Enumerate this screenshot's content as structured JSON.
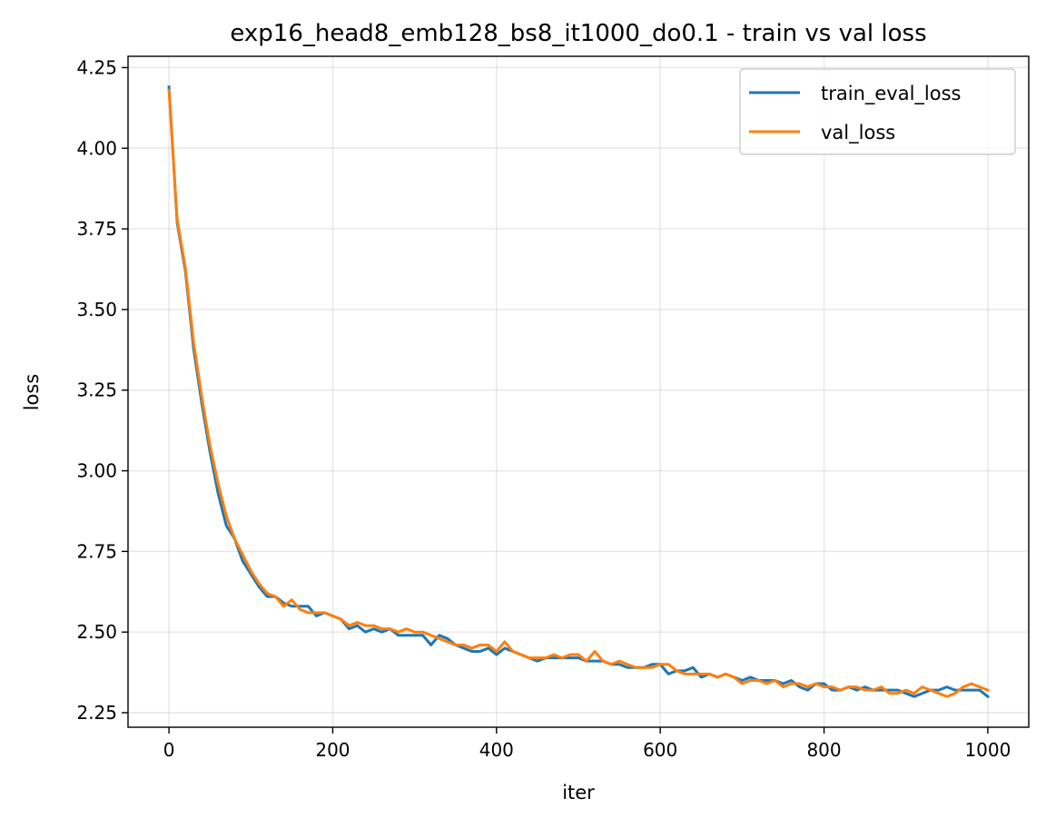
{
  "chart_data": {
    "type": "line",
    "title": "exp16_head8_emb128_bs8_it1000_do0.1 - train vs val loss",
    "xlabel": "iter",
    "ylabel": "loss",
    "xlim": [
      -50,
      1050
    ],
    "ylim": [
      2.205,
      4.285
    ],
    "xticks": [
      0,
      200,
      400,
      600,
      800,
      1000
    ],
    "yticks": [
      2.25,
      2.5,
      2.75,
      3.0,
      3.25,
      3.5,
      3.75,
      4.0,
      4.25
    ],
    "xtick_labels": [
      "0",
      "200",
      "400",
      "600",
      "800",
      "1000"
    ],
    "ytick_labels": [
      "2.25",
      "2.50",
      "2.75",
      "3.00",
      "3.25",
      "3.50",
      "3.75",
      "4.00",
      "4.25"
    ],
    "grid": true,
    "legend_position": "top-right",
    "x": [
      0,
      10,
      20,
      30,
      40,
      50,
      60,
      70,
      80,
      90,
      100,
      110,
      120,
      130,
      140,
      150,
      160,
      170,
      180,
      190,
      200,
      210,
      220,
      230,
      240,
      250,
      260,
      270,
      280,
      290,
      300,
      310,
      320,
      330,
      340,
      350,
      360,
      370,
      380,
      390,
      400,
      410,
      420,
      430,
      440,
      450,
      460,
      470,
      480,
      490,
      500,
      510,
      520,
      530,
      540,
      550,
      560,
      570,
      580,
      590,
      600,
      610,
      620,
      630,
      640,
      650,
      660,
      670,
      680,
      690,
      700,
      710,
      720,
      730,
      740,
      750,
      760,
      770,
      780,
      790,
      800,
      810,
      820,
      830,
      840,
      850,
      860,
      870,
      880,
      890,
      900,
      910,
      920,
      930,
      940,
      950,
      960,
      970,
      980,
      990,
      1000
    ],
    "series": [
      {
        "name": "train_eval_loss",
        "color": "#1f77b4",
        "values": [
          4.19,
          3.77,
          3.62,
          3.38,
          3.21,
          3.06,
          2.93,
          2.83,
          2.79,
          2.72,
          2.68,
          2.64,
          2.61,
          2.61,
          2.59,
          2.58,
          2.58,
          2.58,
          2.55,
          2.56,
          2.55,
          2.54,
          2.51,
          2.52,
          2.5,
          2.51,
          2.5,
          2.51,
          2.49,
          2.49,
          2.49,
          2.49,
          2.46,
          2.49,
          2.48,
          2.46,
          2.45,
          2.44,
          2.44,
          2.45,
          2.43,
          2.45,
          2.44,
          2.43,
          2.42,
          2.41,
          2.42,
          2.42,
          2.42,
          2.42,
          2.42,
          2.41,
          2.41,
          2.41,
          2.4,
          2.4,
          2.39,
          2.39,
          2.39,
          2.4,
          2.4,
          2.37,
          2.38,
          2.38,
          2.39,
          2.36,
          2.37,
          2.36,
          2.37,
          2.36,
          2.35,
          2.36,
          2.35,
          2.35,
          2.35,
          2.34,
          2.35,
          2.33,
          2.32,
          2.34,
          2.34,
          2.32,
          2.32,
          2.33,
          2.32,
          2.33,
          2.32,
          2.32,
          2.32,
          2.32,
          2.31,
          2.3,
          2.31,
          2.32,
          2.32,
          2.33,
          2.32,
          2.32,
          2.32,
          2.32,
          2.3
        ]
      },
      {
        "name": "val_loss",
        "color": "#ff7f0e",
        "values": [
          4.18,
          3.78,
          3.63,
          3.4,
          3.23,
          3.08,
          2.96,
          2.86,
          2.79,
          2.74,
          2.69,
          2.65,
          2.62,
          2.61,
          2.58,
          2.6,
          2.57,
          2.56,
          2.56,
          2.56,
          2.55,
          2.54,
          2.52,
          2.53,
          2.52,
          2.52,
          2.51,
          2.51,
          2.5,
          2.51,
          2.5,
          2.5,
          2.49,
          2.48,
          2.47,
          2.46,
          2.46,
          2.45,
          2.46,
          2.46,
          2.44,
          2.47,
          2.44,
          2.43,
          2.42,
          2.42,
          2.42,
          2.43,
          2.42,
          2.43,
          2.43,
          2.41,
          2.44,
          2.41,
          2.4,
          2.41,
          2.4,
          2.39,
          2.39,
          2.39,
          2.4,
          2.4,
          2.38,
          2.37,
          2.37,
          2.37,
          2.37,
          2.36,
          2.37,
          2.36,
          2.34,
          2.35,
          2.35,
          2.34,
          2.35,
          2.33,
          2.34,
          2.34,
          2.33,
          2.34,
          2.33,
          2.33,
          2.32,
          2.33,
          2.33,
          2.32,
          2.32,
          2.33,
          2.31,
          2.31,
          2.32,
          2.31,
          2.33,
          2.32,
          2.31,
          2.3,
          2.31,
          2.33,
          2.34,
          2.33,
          2.32
        ]
      }
    ]
  }
}
